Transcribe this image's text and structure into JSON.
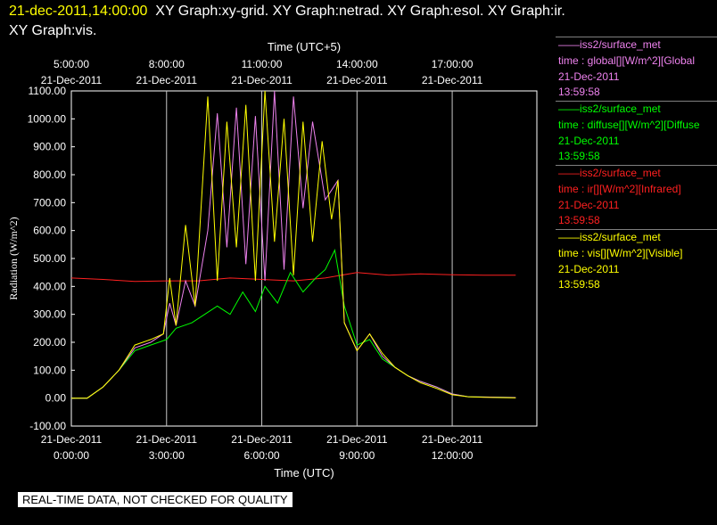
{
  "header": {
    "timestamp": "21-dec-2011,14:00:00",
    "graphs_line1": "XY Graph:xy-grid.  XY Graph:netrad.  XY Graph:esol.  XY Graph:ir.",
    "graphs_line2": "XY Graph:vis."
  },
  "legend": [
    {
      "source": "——iss2/surface_met",
      "field": "time : global[][W/m^2][Global",
      "date": "21-Dec-2011",
      "time": "13:59:58",
      "color": "#ee82ee"
    },
    {
      "source": "——iss2/surface_met",
      "field": "time : diffuse[][W/m^2][Diffuse",
      "date": "21-Dec-2011",
      "time": "13:59:58",
      "color": "#00ff00"
    },
    {
      "source": "——iss2/surface_met",
      "field": "time : ir[][W/m^2][Infrared]",
      "date": "21-Dec-2011",
      "time": "13:59:58",
      "color": "#ff2020"
    },
    {
      "source": "——iss2/surface_met",
      "field": "time : vis[][W/m^2][Visible]",
      "date": "21-Dec-2011",
      "time": "13:59:58",
      "color": "#ffff00"
    }
  ],
  "notice": "REAL-TIME DATA, NOT CHECKED FOR QUALITY",
  "chart_data": {
    "type": "line",
    "xlabel": "Time (UTC)",
    "x2label": "Time (UTC+5)",
    "ylabel": "Radiation (W/m^2)",
    "xlim": [
      0,
      14.667
    ],
    "ylim": [
      -100,
      1100
    ],
    "grid": true,
    "y_ticks": [
      "-100.00",
      "0.00",
      "100.00",
      "200.00",
      "300.00",
      "400.00",
      "500.00",
      "600.00",
      "700.00",
      "800.00",
      "900.00",
      "1000.00",
      "1100.00"
    ],
    "x_ticks": [
      {
        "x": 0,
        "date": "21-Dec-2011",
        "time": "0:00:00"
      },
      {
        "x": 3,
        "date": "21-Dec-2011",
        "time": "3:00:00"
      },
      {
        "x": 6,
        "date": "21-Dec-2011",
        "time": "6:00:00"
      },
      {
        "x": 9,
        "date": "21-Dec-2011",
        "time": "9:00:00"
      },
      {
        "x": 12,
        "date": "21-Dec-2011",
        "time": "12:00:00"
      }
    ],
    "x2_ticks": [
      {
        "x": 0,
        "time": "5:00:00",
        "date": "21-Dec-2011"
      },
      {
        "x": 3,
        "time": "8:00:00",
        "date": "21-Dec-2011"
      },
      {
        "x": 6,
        "time": "11:00:00",
        "date": "21-Dec-2011"
      },
      {
        "x": 9,
        "time": "14:00:00",
        "date": "21-Dec-2011"
      },
      {
        "x": 12,
        "time": "17:00:00",
        "date": "21-Dec-2011"
      }
    ],
    "series": [
      {
        "name": "global",
        "color": "#ee82ee",
        "points": [
          [
            0,
            0
          ],
          [
            0.5,
            0
          ],
          [
            1,
            40
          ],
          [
            1.5,
            100
          ],
          [
            2,
            180
          ],
          [
            2.5,
            200
          ],
          [
            2.9,
            230
          ],
          [
            3.1,
            340
          ],
          [
            3.3,
            260
          ],
          [
            3.6,
            420
          ],
          [
            3.9,
            330
          ],
          [
            4.3,
            600
          ],
          [
            4.6,
            1020
          ],
          [
            4.9,
            540
          ],
          [
            5.2,
            1040
          ],
          [
            5.5,
            480
          ],
          [
            5.8,
            1010
          ],
          [
            6.1,
            420
          ],
          [
            6.4,
            1100
          ],
          [
            6.7,
            460
          ],
          [
            7.0,
            1080
          ],
          [
            7.3,
            680
          ],
          [
            7.6,
            990
          ],
          [
            8.0,
            710
          ],
          [
            8.4,
            780
          ],
          [
            8.6,
            270
          ],
          [
            9.0,
            170
          ],
          [
            9.4,
            230
          ],
          [
            9.8,
            150
          ],
          [
            10.2,
            110
          ],
          [
            10.6,
            80
          ],
          [
            11,
            60
          ],
          [
            11.5,
            40
          ],
          [
            12,
            15
          ],
          [
            12.5,
            5
          ],
          [
            13,
            4
          ],
          [
            14,
            2
          ]
        ]
      },
      {
        "name": "diffuse",
        "color": "#00ff00",
        "points": [
          [
            0,
            0
          ],
          [
            0.5,
            0
          ],
          [
            1,
            40
          ],
          [
            1.5,
            100
          ],
          [
            2,
            170
          ],
          [
            2.5,
            190
          ],
          [
            3,
            210
          ],
          [
            3.3,
            250
          ],
          [
            3.8,
            270
          ],
          [
            4.2,
            300
          ],
          [
            4.6,
            330
          ],
          [
            5.0,
            300
          ],
          [
            5.4,
            380
          ],
          [
            5.8,
            310
          ],
          [
            6.1,
            400
          ],
          [
            6.5,
            340
          ],
          [
            6.9,
            450
          ],
          [
            7.3,
            380
          ],
          [
            7.7,
            430
          ],
          [
            8.0,
            460
          ],
          [
            8.3,
            530
          ],
          [
            8.6,
            330
          ],
          [
            9.0,
            190
          ],
          [
            9.4,
            210
          ],
          [
            9.8,
            140
          ],
          [
            10.2,
            110
          ],
          [
            10.6,
            80
          ],
          [
            11,
            60
          ],
          [
            11.5,
            40
          ],
          [
            12,
            15
          ],
          [
            12.5,
            5
          ],
          [
            13,
            4
          ],
          [
            14,
            2
          ]
        ]
      },
      {
        "name": "ir",
        "color": "#ff2020",
        "points": [
          [
            0,
            430
          ],
          [
            1,
            425
          ],
          [
            2,
            418
          ],
          [
            3,
            420
          ],
          [
            4,
            420
          ],
          [
            5,
            430
          ],
          [
            6,
            425
          ],
          [
            7,
            420
          ],
          [
            8,
            430
          ],
          [
            9,
            450
          ],
          [
            10,
            440
          ],
          [
            11,
            445
          ],
          [
            12,
            442
          ],
          [
            13,
            440
          ],
          [
            14,
            440
          ]
        ]
      },
      {
        "name": "vis",
        "color": "#ffff00",
        "points": [
          [
            0,
            0
          ],
          [
            0.5,
            0
          ],
          [
            1,
            40
          ],
          [
            1.5,
            100
          ],
          [
            2,
            190
          ],
          [
            2.5,
            210
          ],
          [
            2.9,
            230
          ],
          [
            3.1,
            430
          ],
          [
            3.3,
            260
          ],
          [
            3.6,
            620
          ],
          [
            3.9,
            330
          ],
          [
            4.3,
            1080
          ],
          [
            4.6,
            420
          ],
          [
            4.9,
            990
          ],
          [
            5.2,
            540
          ],
          [
            5.5,
            1050
          ],
          [
            5.8,
            420
          ],
          [
            6.1,
            1100
          ],
          [
            6.4,
            560
          ],
          [
            6.7,
            1000
          ],
          [
            7.0,
            440
          ],
          [
            7.3,
            990
          ],
          [
            7.6,
            560
          ],
          [
            7.9,
            920
          ],
          [
            8.2,
            640
          ],
          [
            8.4,
            780
          ],
          [
            8.6,
            270
          ],
          [
            9.0,
            170
          ],
          [
            9.4,
            230
          ],
          [
            9.8,
            160
          ],
          [
            10.2,
            110
          ],
          [
            10.6,
            80
          ],
          [
            11,
            55
          ],
          [
            11.5,
            35
          ],
          [
            12,
            12
          ],
          [
            12.5,
            5
          ],
          [
            13,
            3
          ],
          [
            14,
            1
          ]
        ]
      }
    ]
  }
}
